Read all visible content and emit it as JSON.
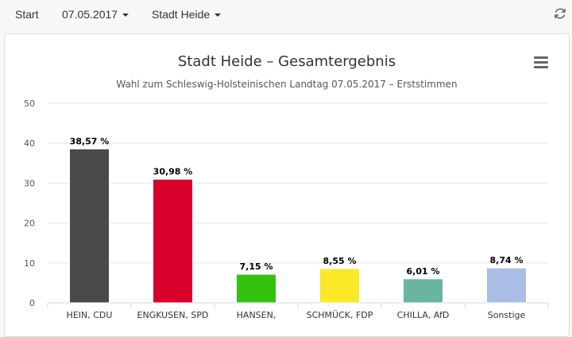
{
  "nav": {
    "start": "Start",
    "date": "07.05.2017",
    "place": "Stadt Heide"
  },
  "icons": {
    "refresh": "refresh-icon",
    "menu": "hamburger-menu-icon"
  },
  "chart_data": {
    "type": "bar",
    "title": "Stadt Heide – Gesamtergebnis",
    "subtitle": "Wahl zum Schleswig-Holsteinischen Landtag 07.05.2017 – Erststimmen",
    "xlabel": "",
    "ylabel": "",
    "ylim": [
      0,
      50
    ],
    "yticks": [
      0,
      10,
      20,
      30,
      40,
      50
    ],
    "grid": true,
    "categories": [
      "HEIN, CDU",
      "ENGKUSEN, SPD",
      "HANSEN,",
      "SCHMÜCK, FDP",
      "CHILLA, AfD",
      "Sonstige"
    ],
    "values": [
      38.57,
      30.98,
      7.15,
      8.55,
      6.01,
      8.74
    ],
    "data_labels": [
      "38,57 %",
      "30,98 %",
      "7,15 %",
      "8,55 %",
      "6,01 %",
      "8,74 %"
    ],
    "colors": [
      "#4a4a4a",
      "#d6002a",
      "#33c20e",
      "#f9e927",
      "#6ab5a0",
      "#a9bde6"
    ]
  }
}
